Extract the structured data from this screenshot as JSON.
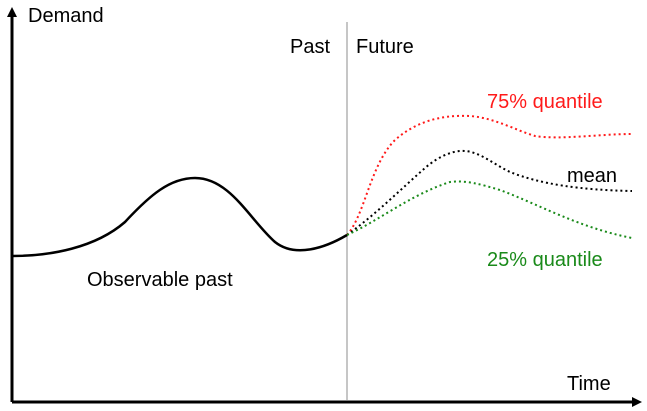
{
  "axes": {
    "y_label": "Demand",
    "x_label": "Time"
  },
  "divider": {
    "past_label": "Past",
    "future_label": "Future",
    "color": "#b4b4b4"
  },
  "observed": {
    "label": "Observable past",
    "color": "#000000"
  },
  "forecast": {
    "q75": {
      "label": "75% quantile",
      "color": "#ff1a1a"
    },
    "mean": {
      "label": "mean",
      "color": "#000000"
    },
    "q25": {
      "label": "25% quantile",
      "color": "#1a8a1a"
    }
  }
}
